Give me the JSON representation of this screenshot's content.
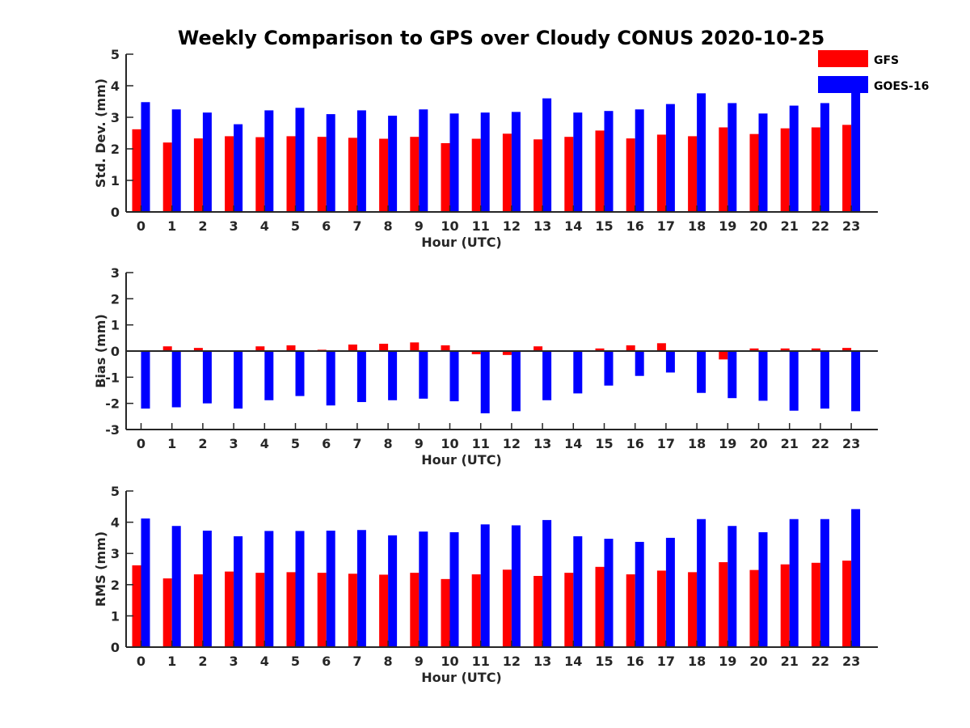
{
  "figure": {
    "title": "Weekly Comparison to GPS over Cloudy CONUS 2020-10-25"
  },
  "legend": {
    "items": [
      {
        "label": "GFS",
        "color": "#ff0000"
      },
      {
        "label": "GOES-16",
        "color": "#0000ff"
      }
    ]
  },
  "chart_data": [
    {
      "type": "bar",
      "title": "Weekly Comparison to GPS over Cloudy CONUS 2020-10-25",
      "xlabel": "Hour (UTC)",
      "ylabel": "Std. Dev. (mm)",
      "ylim": [
        0,
        5
      ],
      "yticks": [
        0,
        1,
        2,
        3,
        4,
        5
      ],
      "categories": [
        "0",
        "1",
        "2",
        "3",
        "4",
        "5",
        "6",
        "7",
        "8",
        "9",
        "10",
        "11",
        "12",
        "13",
        "14",
        "15",
        "16",
        "17",
        "18",
        "19",
        "20",
        "21",
        "22",
        "23"
      ],
      "series": [
        {
          "name": "GFS",
          "color": "#ff0000",
          "values": [
            2.62,
            2.2,
            2.33,
            2.4,
            2.37,
            2.4,
            2.38,
            2.35,
            2.32,
            2.38,
            2.18,
            2.32,
            2.48,
            2.3,
            2.38,
            2.58,
            2.33,
            2.45,
            2.4,
            2.68,
            2.47,
            2.65,
            2.68,
            2.76
          ]
        },
        {
          "name": "GOES-16",
          "color": "#0000ff",
          "values": [
            3.48,
            3.25,
            3.15,
            2.78,
            3.22,
            3.3,
            3.1,
            3.22,
            3.05,
            3.25,
            3.12,
            3.15,
            3.17,
            3.6,
            3.15,
            3.2,
            3.25,
            3.42,
            3.76,
            3.45,
            3.12,
            3.37,
            3.45,
            3.85
          ]
        }
      ],
      "legend": "top-right",
      "grid": false
    },
    {
      "type": "bar",
      "xlabel": "Hour (UTC)",
      "ylabel": "Bias (mm)",
      "ylim": [
        -3,
        3
      ],
      "yticks": [
        -3,
        -2,
        -1,
        0,
        1,
        2,
        3
      ],
      "categories": [
        "0",
        "1",
        "2",
        "3",
        "4",
        "5",
        "6",
        "7",
        "8",
        "9",
        "10",
        "11",
        "12",
        "13",
        "14",
        "15",
        "16",
        "17",
        "18",
        "19",
        "20",
        "21",
        "22",
        "23"
      ],
      "series": [
        {
          "name": "GFS",
          "color": "#ff0000",
          "values": [
            0.0,
            0.18,
            0.12,
            -0.03,
            0.18,
            0.22,
            0.05,
            0.25,
            0.28,
            0.33,
            0.22,
            -0.12,
            -0.15,
            0.18,
            0.02,
            0.1,
            0.22,
            0.3,
            0.0,
            -0.32,
            0.1,
            0.1,
            0.1,
            0.12
          ]
        },
        {
          "name": "GOES-16",
          "color": "#0000ff",
          "values": [
            -2.2,
            -2.15,
            -2.0,
            -2.2,
            -1.88,
            -1.72,
            -2.08,
            -1.95,
            -1.88,
            -1.82,
            -1.92,
            -2.38,
            -2.3,
            -1.88,
            -1.62,
            -1.32,
            -0.95,
            -0.82,
            -1.6,
            -1.8,
            -1.9,
            -2.28,
            -2.2,
            -2.3
          ]
        }
      ],
      "grid": false
    },
    {
      "type": "bar",
      "xlabel": "Hour (UTC)",
      "ylabel": "RMS (mm)",
      "ylim": [
        0,
        5
      ],
      "yticks": [
        0,
        1,
        2,
        3,
        4,
        5
      ],
      "categories": [
        "0",
        "1",
        "2",
        "3",
        "4",
        "5",
        "6",
        "7",
        "8",
        "9",
        "10",
        "11",
        "12",
        "13",
        "14",
        "15",
        "16",
        "17",
        "18",
        "19",
        "20",
        "21",
        "22",
        "23"
      ],
      "series": [
        {
          "name": "GFS",
          "color": "#ff0000",
          "values": [
            2.62,
            2.2,
            2.33,
            2.42,
            2.38,
            2.4,
            2.38,
            2.35,
            2.32,
            2.38,
            2.18,
            2.33,
            2.48,
            2.28,
            2.38,
            2.57,
            2.33,
            2.45,
            2.4,
            2.72,
            2.47,
            2.65,
            2.7,
            2.77
          ]
        },
        {
          "name": "GOES-16",
          "color": "#0000ff",
          "values": [
            4.12,
            3.88,
            3.73,
            3.55,
            3.72,
            3.72,
            3.73,
            3.75,
            3.58,
            3.7,
            3.68,
            3.93,
            3.9,
            4.07,
            3.55,
            3.47,
            3.37,
            3.5,
            4.1,
            3.88,
            3.68,
            4.1,
            4.1,
            4.42
          ]
        }
      ],
      "grid": false
    }
  ]
}
